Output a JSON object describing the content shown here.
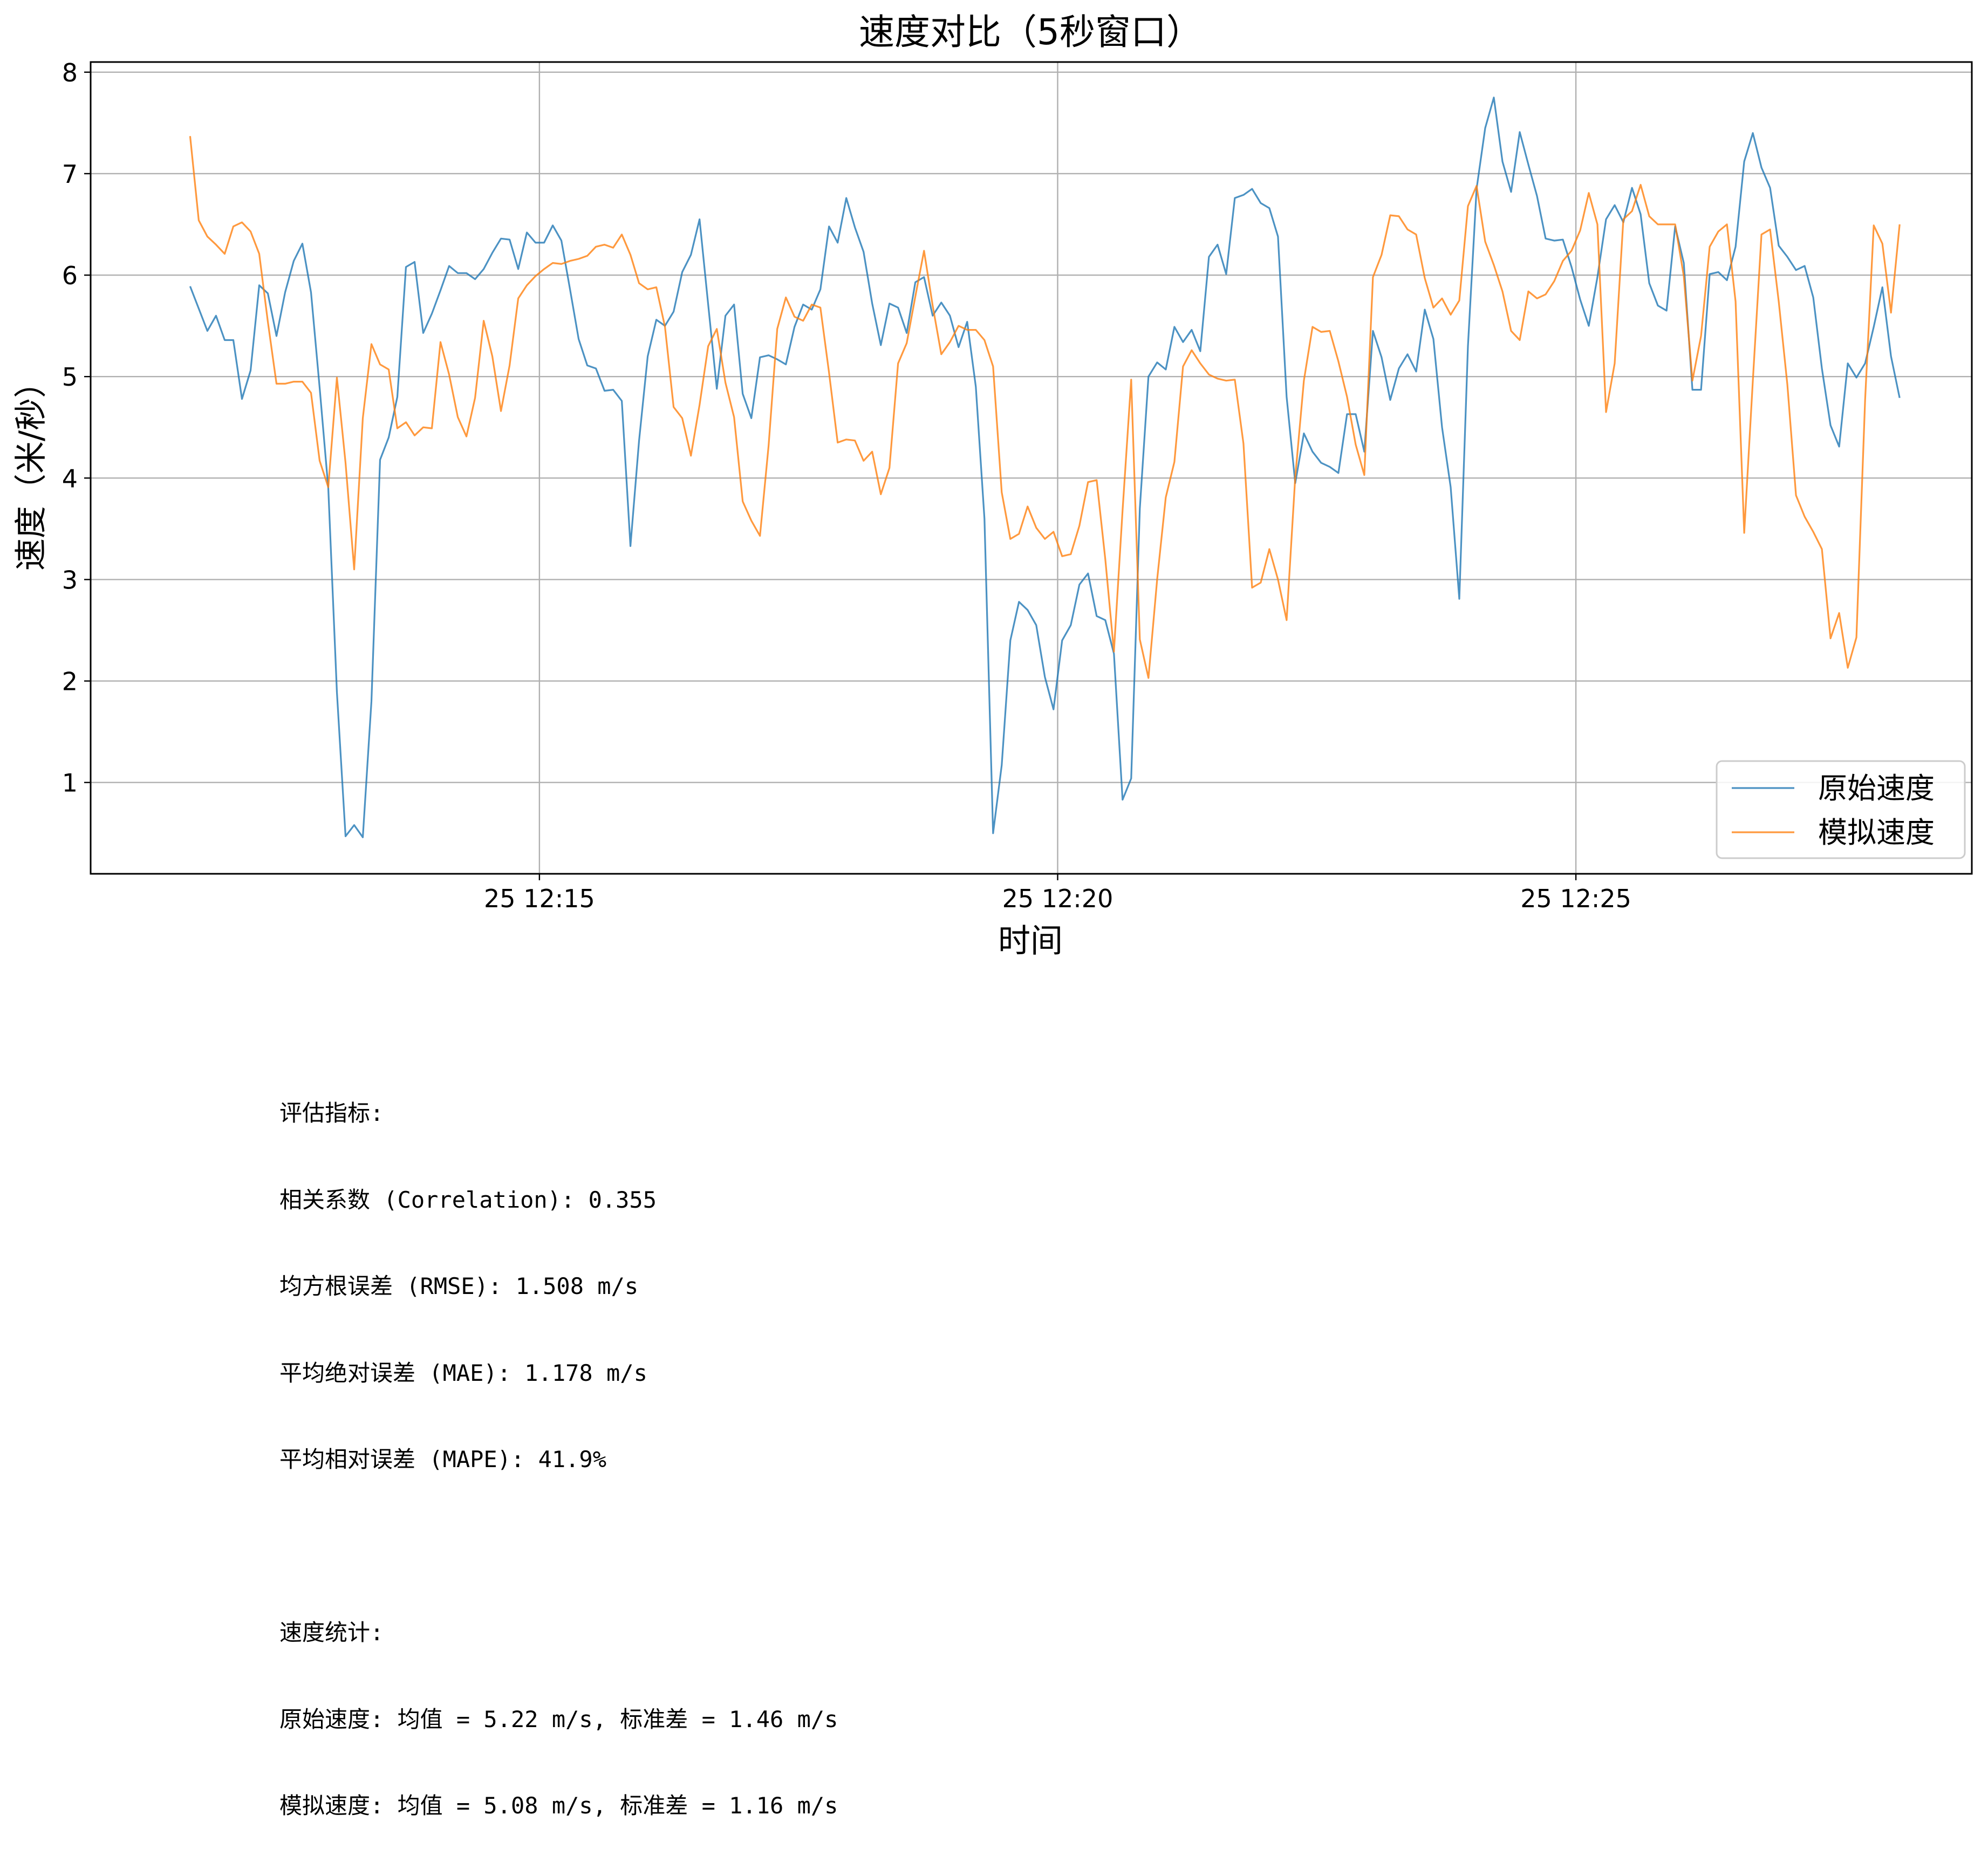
{
  "chart_data": {
    "type": "line",
    "title": "速度对比（5秒窗口）",
    "xlabel": "时间",
    "ylabel": "速度（米/秒）",
    "x_ticks": [
      "25 12:15",
      "25 12:20",
      "25 12:25"
    ],
    "x_tick_minutes": [
      15,
      20,
      25
    ],
    "xlim_minutes": [
      10.67,
      28.82
    ],
    "ylim": [
      0.1,
      8.1
    ],
    "y_ticks": [
      1,
      2,
      3,
      4,
      5,
      6,
      7,
      8
    ],
    "grid": true,
    "legend_position": "lower right",
    "x_start_minutes": 11.63,
    "x_step_minutes": 0.0833,
    "series": [
      {
        "name": "原始速度",
        "color": "#1f77b4",
        "values": [
          5.89,
          5.67,
          5.45,
          5.6,
          5.36,
          5.36,
          4.78,
          5.06,
          5.9,
          5.82,
          5.4,
          5.83,
          6.14,
          6.31,
          5.83,
          4.89,
          3.9,
          1.89,
          0.47,
          0.58,
          0.46,
          1.8,
          4.18,
          4.4,
          4.8,
          6.08,
          6.13,
          5.43,
          5.62,
          5.85,
          6.09,
          6.02,
          6.02,
          5.96,
          6.06,
          6.22,
          6.36,
          6.35,
          6.06,
          6.42,
          6.32,
          6.32,
          6.49,
          6.34,
          5.86,
          5.37,
          5.11,
          5.08,
          4.86,
          4.87,
          4.76,
          3.33,
          4.37,
          5.2,
          5.56,
          5.5,
          5.64,
          6.03,
          6.2,
          6.55,
          5.71,
          4.88,
          5.6,
          5.71,
          4.83,
          4.59,
          5.19,
          5.21,
          5.17,
          5.12,
          5.49,
          5.71,
          5.66,
          5.86,
          6.48,
          6.32,
          6.76,
          6.47,
          6.23,
          5.72,
          5.31,
          5.72,
          5.68,
          5.43,
          5.93,
          5.98,
          5.6,
          5.73,
          5.6,
          5.29,
          5.54,
          4.9,
          3.6,
          0.5,
          1.17,
          2.4,
          2.78,
          2.7,
          2.55,
          2.04,
          1.72,
          2.4,
          2.55,
          2.95,
          3.06,
          2.64,
          2.6,
          2.27,
          0.83,
          1.04,
          3.7,
          5.0,
          5.14,
          5.07,
          5.49,
          5.34,
          5.46,
          5.25,
          6.18,
          6.3,
          6.01,
          6.76,
          6.79,
          6.85,
          6.71,
          6.66,
          6.38,
          4.8,
          3.95,
          4.44,
          4.26,
          4.15,
          4.11,
          4.05,
          4.63,
          4.63,
          4.26,
          5.45,
          5.19,
          4.77,
          5.08,
          5.22,
          5.05,
          5.66,
          5.37,
          4.5,
          3.91,
          2.81,
          5.3,
          6.85,
          7.45,
          7.75,
          7.12,
          6.82,
          7.41,
          7.09,
          6.78,
          6.36,
          6.34,
          6.35,
          6.08,
          5.76,
          5.5,
          5.98,
          6.55,
          6.69,
          6.52,
          6.86,
          6.6,
          5.92,
          5.7,
          5.65,
          6.48,
          6.12,
          4.87,
          4.87,
          6.01,
          6.03,
          5.95,
          6.28,
          7.12,
          7.4,
          7.06,
          6.86,
          6.29,
          6.18,
          6.05,
          6.09,
          5.78,
          5.08,
          4.52,
          4.31,
          5.13,
          4.99,
          5.13,
          5.49,
          5.88,
          5.2,
          4.79
        ]
      },
      {
        "name": "模拟速度",
        "color": "#ff7f0e",
        "values": [
          7.37,
          6.54,
          6.38,
          6.3,
          6.21,
          6.48,
          6.52,
          6.43,
          6.21,
          5.54,
          4.93,
          4.93,
          4.95,
          4.95,
          4.84,
          4.17,
          3.91,
          4.99,
          4.15,
          3.1,
          4.59,
          5.32,
          5.12,
          5.07,
          4.49,
          4.55,
          4.42,
          4.5,
          4.49,
          5.34,
          5.02,
          4.6,
          4.41,
          4.79,
          5.55,
          5.2,
          4.66,
          5.11,
          5.77,
          5.9,
          5.99,
          6.06,
          6.12,
          6.11,
          6.14,
          6.16,
          6.19,
          6.28,
          6.3,
          6.27,
          6.4,
          6.2,
          5.92,
          5.86,
          5.88,
          5.49,
          4.7,
          4.59,
          4.22,
          4.72,
          5.3,
          5.47,
          4.94,
          4.6,
          3.77,
          3.58,
          3.43,
          4.32,
          5.47,
          5.78,
          5.59,
          5.55,
          5.71,
          5.68,
          5.04,
          4.35,
          4.38,
          4.37,
          4.17,
          4.26,
          3.84,
          4.1,
          5.13,
          5.33,
          5.79,
          6.24,
          5.7,
          5.22,
          5.34,
          5.5,
          5.46,
          5.46,
          5.36,
          5.1,
          3.86,
          3.4,
          3.45,
          3.72,
          3.51,
          3.4,
          3.47,
          3.23,
          3.25,
          3.53,
          3.96,
          3.98,
          3.2,
          2.29,
          3.68,
          4.97,
          2.41,
          2.03,
          3.0,
          3.81,
          4.16,
          5.1,
          5.26,
          5.13,
          5.02,
          4.98,
          4.96,
          4.97,
          4.34,
          2.92,
          2.97,
          3.3,
          3.0,
          2.6,
          4.01,
          4.96,
          5.49,
          5.44,
          5.45,
          5.15,
          4.8,
          4.33,
          4.03,
          5.98,
          6.2,
          6.59,
          6.58,
          6.45,
          6.4,
          5.97,
          5.68,
          5.77,
          5.61,
          5.75,
          6.68,
          6.88,
          6.33,
          6.1,
          5.84,
          5.45,
          5.36,
          5.84,
          5.77,
          5.81,
          5.94,
          6.14,
          6.24,
          6.44,
          6.81,
          6.5,
          4.65,
          5.13,
          6.55,
          6.63,
          6.89,
          6.58,
          6.5,
          6.5,
          6.5,
          5.99,
          4.96,
          5.4,
          6.28,
          6.43,
          6.5,
          5.74,
          3.46,
          4.96,
          6.4,
          6.45,
          5.74,
          4.92,
          3.83,
          3.62,
          3.47,
          3.3,
          2.42,
          2.67,
          2.13,
          2.43,
          4.77,
          6.49,
          6.31,
          5.63,
          6.5
        ]
      }
    ]
  },
  "stats_text": {
    "metrics_header": "评估指标:",
    "correlation": "相关系数 (Correlation): 0.355",
    "rmse": "均方根误差 (RMSE): 1.508 m/s",
    "mae": "平均绝对误差 (MAE): 1.178 m/s",
    "mape": "平均相对误差 (MAPE): 41.9%",
    "speed_header": "速度统计:",
    "orig_stats": "原始速度: 均值 = 5.22 m/s, 标准差 = 1.46 m/s",
    "sim_stats": "模拟速度: 均值 = 5.08 m/s, 标准差 = 1.16 m/s"
  }
}
